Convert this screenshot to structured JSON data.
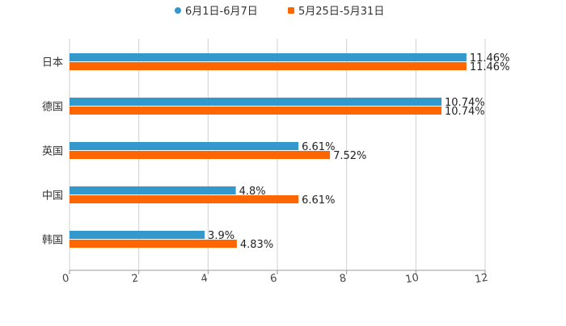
{
  "chart_data": {
    "type": "bar",
    "orientation": "horizontal",
    "title": "",
    "categories": [
      "日本",
      "德国",
      "英国",
      "中国",
      "韩国"
    ],
    "series": [
      {
        "name": "6月1日-6月7日",
        "color": "#3398cc",
        "values": [
          11.46,
          10.74,
          6.61,
          4.8,
          3.9
        ],
        "labels": [
          "11.46%",
          "10.74%",
          "6.61%",
          "4.8%",
          "3.9%"
        ]
      },
      {
        "name": "5月25日-5月31日",
        "color": "#ff6600",
        "values": [
          11.46,
          10.74,
          7.52,
          6.61,
          4.83
        ],
        "labels": [
          "11.46%",
          "10.74%",
          "7.52%",
          "6.61%",
          "4.83%"
        ]
      }
    ],
    "xlim": [
      0,
      12
    ],
    "xticks": [
      "0",
      "2",
      "4",
      "6",
      "8",
      "10",
      "12"
    ],
    "xlabel": "",
    "ylabel": "",
    "grid": true,
    "legend": "top-center"
  }
}
